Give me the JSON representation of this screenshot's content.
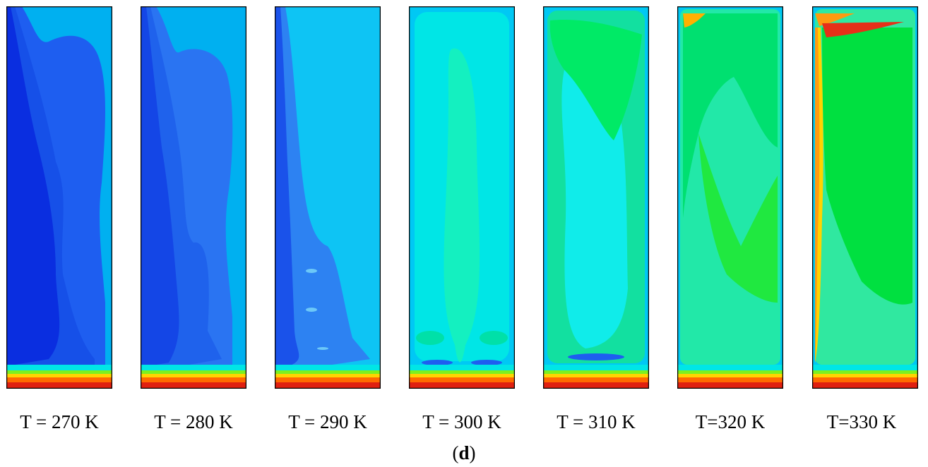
{
  "figure_label": {
    "open": "(",
    "letter": "d",
    "close": ")"
  },
  "panels": [
    {
      "caption": "T = 270 K",
      "bulk_color": "#0a2ee0",
      "inner_color": "#1650e8",
      "outer_color": "#00b0f0",
      "accent_color": "#1e5ef0"
    },
    {
      "caption": "T = 280 K",
      "bulk_color": "#1446e6",
      "inner_color": "#1f62ec",
      "outer_color": "#00b0f0",
      "accent_color": "#2a74f2"
    },
    {
      "caption": "T = 290 K",
      "bulk_color": "#1a52ea",
      "inner_color": "#2d82f2",
      "outer_color": "#00b4f0",
      "accent_color": "#0ec4f4"
    },
    {
      "caption": "T = 300 K",
      "bulk_color": "#14f0c0",
      "inner_color": "#00e0a8",
      "outer_color": "#00c8f4",
      "accent_color": "#00e6e6"
    },
    {
      "caption": "T = 310 K",
      "bulk_color": "#10ecea",
      "inner_color": "#12e0a0",
      "outer_color": "#00ea66",
      "accent_color": "#00c8f4"
    },
    {
      "caption": "T=320 K",
      "bulk_color": "#00e070",
      "inner_color": "#22e8a8",
      "outer_color": "#00c8f4",
      "accent_color": "#20e840"
    },
    {
      "caption": "T=330 K",
      "bulk_color": "#00e040",
      "inner_color": "#30e8a0",
      "outer_color": "#00c8f4",
      "accent_color": "#ff9a10"
    }
  ]
}
